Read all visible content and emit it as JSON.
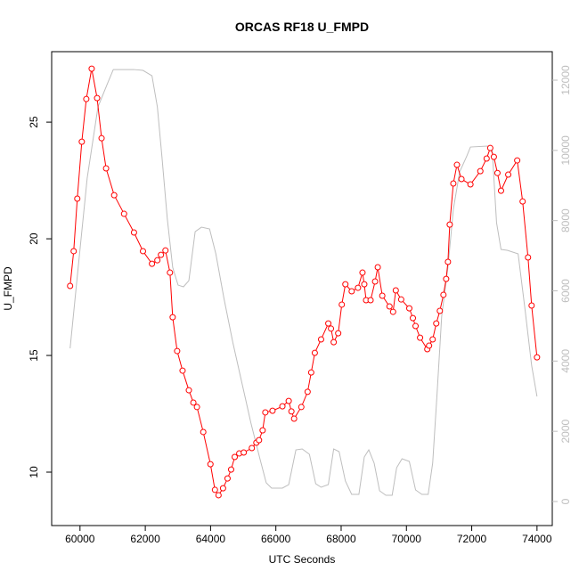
{
  "chart_data": {
    "type": "line",
    "title": "ORCAS RF18 U_FMPD",
    "xlabel": "UTC Seconds",
    "ylabel": "U_FMPD",
    "xlim": [
      59132,
      74468
    ],
    "ylim": [
      7.71,
      28.02
    ],
    "y2lim": [
      -685,
      12812
    ],
    "xticks": [
      60000,
      62000,
      64000,
      66000,
      68000,
      70000,
      72000,
      74000
    ],
    "yticks": [
      10,
      15,
      20,
      25
    ],
    "y2ticks": [
      0,
      2000,
      4000,
      6000,
      8000,
      10000,
      12000
    ],
    "series": [
      {
        "color": "#bebebe",
        "axis": "y2",
        "marker": "none",
        "x": [
          59697,
          59945,
          60220,
          60551,
          60827,
          61020,
          61654,
          61929,
          62205,
          62370,
          62508,
          62673,
          62839,
          63004,
          63169,
          63335,
          63528,
          63721,
          63969,
          64162,
          64410,
          64685,
          64961,
          65237,
          65512,
          65705,
          65870,
          66201,
          66394,
          66614,
          66807,
          67028,
          67221,
          67386,
          67607,
          67772,
          67937,
          68130,
          68323,
          68544,
          68709,
          68847,
          69012,
          69178,
          69370,
          69563,
          69701,
          69866,
          70088,
          70280,
          70473,
          70666,
          70804,
          70942,
          71080,
          71272,
          71437,
          71630,
          71851,
          71961,
          72485,
          72623,
          72761,
          72898,
          73091,
          73422,
          73642,
          73835,
          74000
        ],
        "values": [
          4363,
          6672,
          9209,
          11238,
          11872,
          12303,
          12303,
          12278,
          12126,
          11238,
          9843,
          8067,
          6672,
          6164,
          6114,
          6291,
          7686,
          7813,
          7763,
          7052,
          5784,
          4515,
          3374,
          2232,
          1218,
          533,
          381,
          381,
          482,
          1471,
          1497,
          1345,
          507,
          406,
          482,
          1497,
          1421,
          583,
          203,
          203,
          1268,
          1471,
          1091,
          304,
          178,
          178,
          964,
          1218,
          1142,
          330,
          203,
          203,
          1091,
          3120,
          5276,
          6672,
          8321,
          9386,
          9843,
          10096,
          10122,
          10096,
          7940,
          7179,
          7154,
          7052,
          5403,
          3881,
          2993
        ]
      },
      {
        "color": "#ff0000",
        "marker": "circle",
        "x": [
          59697,
          59807,
          59917,
          60055,
          60193,
          60358,
          60524,
          60661,
          60799,
          61047,
          61350,
          61654,
          61929,
          62205,
          62370,
          62480,
          62618,
          62756,
          62839,
          62976,
          63142,
          63335,
          63473,
          63583,
          63776,
          63996,
          64134,
          64244,
          64382,
          64520,
          64630,
          64740,
          64878,
          65016,
          65264,
          65402,
          65484,
          65595,
          65677,
          65898,
          66201,
          66394,
          66477,
          66559,
          66780,
          66973,
          67083,
          67193,
          67386,
          67607,
          67689,
          67772,
          67910,
          68020,
          68130,
          68323,
          68516,
          68654,
          68709,
          68764,
          68902,
          69040,
          69122,
          69260,
          69481,
          69591,
          69674,
          69839,
          70088,
          70198,
          70280,
          70418,
          70639,
          70694,
          70804,
          70914,
          71024,
          71134,
          71217,
          71272,
          71327,
          71437,
          71548,
          71686,
          71961,
          72264,
          72457,
          72568,
          72678,
          72788,
          72898,
          73119,
          73394,
          73560,
          73725,
          73835,
          74000
        ],
        "values": [
          17.98,
          19.47,
          21.72,
          24.16,
          25.99,
          27.29,
          26.03,
          24.31,
          23.02,
          21.87,
          21.07,
          20.27,
          19.47,
          18.93,
          19.08,
          19.31,
          19.5,
          18.55,
          16.64,
          15.19,
          14.35,
          13.51,
          12.98,
          12.79,
          11.72,
          10.34,
          9.24,
          9.01,
          9.31,
          9.73,
          10.11,
          10.65,
          10.8,
          10.84,
          11.03,
          11.26,
          11.37,
          11.79,
          12.56,
          12.63,
          12.82,
          13.05,
          12.6,
          12.29,
          12.79,
          13.44,
          14.27,
          15.11,
          15.69,
          16.37,
          16.15,
          15.57,
          15.95,
          17.18,
          18.05,
          17.75,
          17.9,
          18.55,
          18.05,
          17.37,
          17.37,
          18.17,
          18.78,
          17.56,
          17.1,
          16.87,
          17.79,
          17.4,
          17.02,
          16.6,
          16.26,
          15.76,
          15.27,
          15.42,
          15.69,
          16.37,
          16.91,
          17.6,
          18.28,
          19.01,
          20.61,
          22.37,
          23.17,
          22.56,
          22.33,
          22.9,
          23.44,
          23.89,
          23.51,
          22.82,
          22.06,
          22.75,
          23.36,
          21.6,
          19.2,
          17.14,
          14.92
        ]
      }
    ]
  }
}
